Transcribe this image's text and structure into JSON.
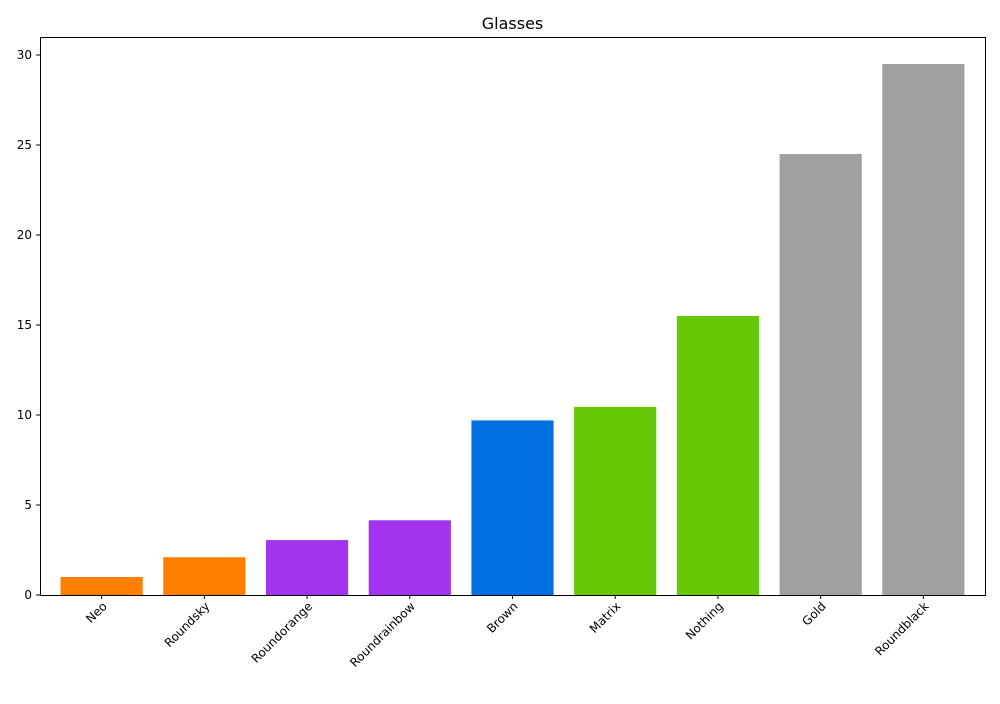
{
  "chart_data": {
    "type": "bar",
    "title": "Glasses",
    "xlabel": "",
    "ylabel": "",
    "categories": [
      "Neo",
      "Roundsky",
      "Roundorange",
      "Roundrainbow",
      "Brown",
      "Matrix",
      "Nothing",
      "Gold",
      "Roundblack"
    ],
    "values": [
      1.0,
      2.1,
      3.05,
      4.15,
      9.7,
      10.45,
      15.5,
      24.5,
      29.5
    ],
    "colors": [
      "#ff7f00",
      "#ff7f00",
      "#a333ec",
      "#a333ec",
      "#0070e0",
      "#67c807",
      "#67c807",
      "#a0a0a0",
      "#a0a0a0"
    ],
    "ylim": [
      0,
      31
    ],
    "yticks": [
      0,
      5,
      10,
      15,
      20,
      25,
      30
    ],
    "grid": false,
    "legend": "none"
  }
}
